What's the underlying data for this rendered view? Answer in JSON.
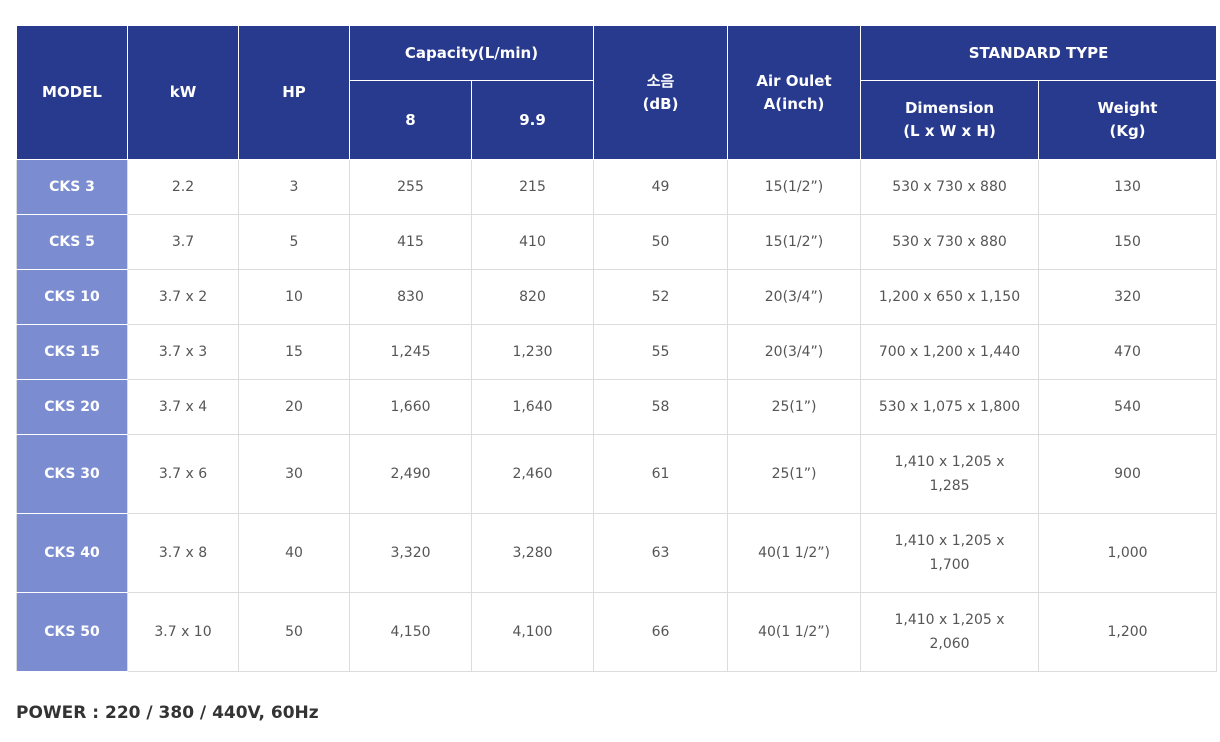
{
  "table": {
    "header": {
      "model": "MODEL",
      "kw": "kW",
      "hp": "HP",
      "capacity": "Capacity(L/min)",
      "capacity_a": "8",
      "capacity_b": "9.9",
      "noise": "소음\n(dB)",
      "air_outlet": "Air Oulet\nA(inch)",
      "standard_type": "STANDARD TYPE",
      "dimension": "Dimension\n(L x W x H)",
      "weight": "Weight\n(Kg)"
    },
    "rows": [
      [
        "CKS 3",
        "2.2",
        "3",
        "255",
        "215",
        "49",
        "15(1/2”)",
        "530 x 730 x 880",
        "130"
      ],
      [
        "CKS 5",
        "3.7",
        "5",
        "415",
        "410",
        "50",
        "15(1/2”)",
        "530 x 730 x 880",
        "150"
      ],
      [
        "CKS 10",
        "3.7 x 2",
        "10",
        "830",
        "820",
        "52",
        "20(3/4”)",
        "1,200 x 650 x 1,150",
        "320"
      ],
      [
        "CKS 15",
        "3.7 x 3",
        "15",
        "1,245",
        "1,230",
        "55",
        "20(3/4”)",
        "700 x 1,200 x 1,440",
        "470"
      ],
      [
        "CKS 20",
        "3.7 x 4",
        "20",
        "1,660",
        "1,640",
        "58",
        "25(1”)",
        "530 x 1,075 x 1,800",
        "540"
      ],
      [
        "CKS 30",
        "3.7 x 6",
        "30",
        "2,490",
        "2,460",
        "61",
        "25(1”)",
        "1,410 x 1,205 x\n1,285",
        "900"
      ],
      [
        "CKS 40",
        "3.7 x 8",
        "40",
        "3,320",
        "3,280",
        "63",
        "40(1 1/2”)",
        "1,410 x 1,205 x\n1,700",
        "1,000"
      ],
      [
        "CKS 50",
        "3.7 x 10",
        "50",
        "4,150",
        "4,100",
        "66",
        "40(1 1/2”)",
        "1,410 x 1,205 x\n2,060",
        "1,200"
      ]
    ]
  },
  "footer": "POWER : 220 / 380 / 440V, 60Hz"
}
